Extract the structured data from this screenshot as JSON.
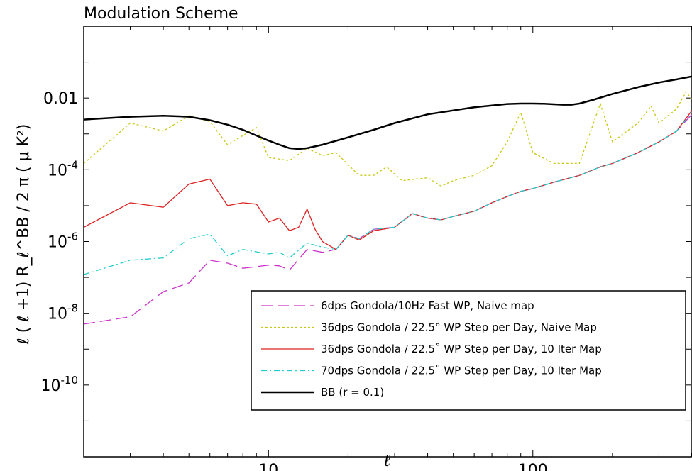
{
  "chart_data": {
    "type": "line",
    "title": "Modulation Scheme",
    "xlabel": "ℓ",
    "ylabel": "ℓ ( ℓ +1) R_ℓ^BB / 2 π ( μ K²)",
    "xscale": "log",
    "yscale": "log",
    "xlim": [
      2,
      400
    ],
    "ylim": [
      1e-12,
      1
    ],
    "x_ticks": [
      10,
      100
    ],
    "x_tick_labels": [
      "10",
      "100"
    ],
    "y_ticks": [
      0.01,
      0.0001,
      1e-06,
      1e-08,
      1e-10
    ],
    "y_tick_labels": [
      {
        "base": "0.01",
        "exp": ""
      },
      {
        "base": "10",
        "exp": "-4"
      },
      {
        "base": "10",
        "exp": "-6"
      },
      {
        "base": "10",
        "exp": "-8"
      },
      {
        "base": "10",
        "exp": "-10"
      }
    ],
    "grid": false,
    "legend_position": "bottom-right",
    "series": [
      {
        "name": "6dps Gondola/10Hz Fast WP, Naive map",
        "color": "#cc33cc",
        "dash": "long-dash",
        "points": [
          [
            2,
            5e-09
          ],
          [
            3,
            8e-09
          ],
          [
            4,
            4e-08
          ],
          [
            5,
            7e-08
          ],
          [
            6,
            3e-07
          ],
          [
            7,
            2.5e-07
          ],
          [
            8,
            1.8e-07
          ],
          [
            10,
            2.2e-07
          ],
          [
            11,
            2.1e-07
          ],
          [
            12,
            1.6e-07
          ],
          [
            14,
            6e-07
          ],
          [
            16,
            5e-07
          ],
          [
            18,
            6e-07
          ],
          [
            20,
            1.5e-06
          ],
          [
            22,
            1.2e-06
          ],
          [
            25,
            2.2e-06
          ],
          [
            30,
            2.5e-06
          ],
          [
            35,
            6e-06
          ],
          [
            40,
            4.5e-06
          ],
          [
            45,
            4e-06
          ],
          [
            50,
            5e-06
          ],
          [
            60,
            7e-06
          ],
          [
            70,
            1.2e-05
          ],
          [
            80,
            1.8e-05
          ],
          [
            90,
            2.5e-05
          ],
          [
            100,
            3e-05
          ],
          [
            120,
            4.5e-05
          ],
          [
            150,
            7e-05
          ],
          [
            180,
            0.00012
          ],
          [
            200,
            0.00015
          ],
          [
            250,
            0.0003
          ],
          [
            300,
            0.0006
          ],
          [
            350,
            0.0012
          ],
          [
            400,
            0.0035
          ]
        ]
      },
      {
        "name": "36dps Gondola / 22.5° WP Step per Day, Naive Map",
        "color": "#c8c814",
        "dash": "dotted",
        "points": [
          [
            2,
            0.00015
          ],
          [
            3,
            0.002
          ],
          [
            4,
            0.0012
          ],
          [
            5,
            0.0032
          ],
          [
            6,
            0.0022
          ],
          [
            7,
            0.0005
          ],
          [
            8,
            0.0009
          ],
          [
            9,
            0.0015
          ],
          [
            10,
            0.00022
          ],
          [
            12,
            0.00018
          ],
          [
            14,
            0.0004
          ],
          [
            16,
            0.00025
          ],
          [
            18,
            0.0003
          ],
          [
            22,
            7e-05
          ],
          [
            25,
            7e-05
          ],
          [
            28,
            0.00012
          ],
          [
            32,
            5e-05
          ],
          [
            40,
            6e-05
          ],
          [
            45,
            3.5e-05
          ],
          [
            50,
            5e-05
          ],
          [
            60,
            7e-05
          ],
          [
            70,
            0.00013
          ],
          [
            80,
            0.0006
          ],
          [
            90,
            0.004
          ],
          [
            100,
            0.0003
          ],
          [
            120,
            0.00015
          ],
          [
            150,
            0.00015
          ],
          [
            180,
            0.007
          ],
          [
            200,
            0.0006
          ],
          [
            250,
            0.002
          ],
          [
            280,
            0.006
          ],
          [
            300,
            0.002
          ],
          [
            350,
            0.005
          ],
          [
            380,
            0.015
          ],
          [
            400,
            0.009
          ]
        ]
      },
      {
        "name": "36dps Gondola /  22.5˚ WP Step per Day, 10 Iter Map",
        "color": "#dd2222",
        "dash": "solid",
        "points": [
          [
            2,
            2.5e-06
          ],
          [
            3,
            1.2e-05
          ],
          [
            4,
            9e-06
          ],
          [
            5,
            4e-05
          ],
          [
            6,
            5.5e-05
          ],
          [
            7,
            1e-05
          ],
          [
            8,
            1.2e-05
          ],
          [
            9,
            1.1e-05
          ],
          [
            10,
            3.5e-06
          ],
          [
            11,
            4.5e-06
          ],
          [
            12,
            2e-06
          ],
          [
            13,
            2.5e-06
          ],
          [
            14,
            8e-06
          ],
          [
            15,
            2.2e-06
          ],
          [
            16,
            1e-06
          ],
          [
            18,
            6e-07
          ],
          [
            20,
            1.5e-06
          ],
          [
            22,
            1.1e-06
          ],
          [
            25,
            2e-06
          ],
          [
            30,
            2.5e-06
          ],
          [
            35,
            6e-06
          ],
          [
            40,
            4.5e-06
          ],
          [
            45,
            4e-06
          ],
          [
            50,
            5e-06
          ],
          [
            60,
            7e-06
          ],
          [
            70,
            1.2e-05
          ],
          [
            80,
            1.8e-05
          ],
          [
            90,
            2.5e-05
          ],
          [
            100,
            3e-05
          ],
          [
            120,
            4.5e-05
          ],
          [
            150,
            7e-05
          ],
          [
            180,
            0.00012
          ],
          [
            200,
            0.00015
          ],
          [
            250,
            0.0003
          ],
          [
            300,
            0.0006
          ],
          [
            350,
            0.0012
          ],
          [
            400,
            0.0045
          ]
        ]
      },
      {
        "name": "70dps Gondola /  22.5˚ WP Step per Day, 10 Iter Map",
        "color": "#22cccc",
        "dash": "dash-dot",
        "points": [
          [
            2,
            1.2e-07
          ],
          [
            3,
            3e-07
          ],
          [
            4,
            3.5e-07
          ],
          [
            5,
            1.2e-06
          ],
          [
            6,
            1.6e-06
          ],
          [
            7,
            4e-07
          ],
          [
            8,
            6e-07
          ],
          [
            10,
            4.5e-07
          ],
          [
            11,
            5e-07
          ],
          [
            12,
            3.5e-07
          ],
          [
            14,
            9e-07
          ],
          [
            16,
            7e-07
          ],
          [
            18,
            6e-07
          ],
          [
            20,
            1.5e-06
          ],
          [
            22,
            1.2e-06
          ],
          [
            25,
            2.2e-06
          ],
          [
            30,
            2.5e-06
          ],
          [
            35,
            6e-06
          ],
          [
            40,
            4.5e-06
          ],
          [
            45,
            4e-06
          ],
          [
            50,
            5e-06
          ],
          [
            60,
            7e-06
          ],
          [
            70,
            1.2e-05
          ],
          [
            80,
            1.8e-05
          ],
          [
            90,
            2.5e-05
          ],
          [
            100,
            3e-05
          ],
          [
            120,
            4.5e-05
          ],
          [
            150,
            7e-05
          ],
          [
            180,
            0.00012
          ],
          [
            200,
            0.00015
          ],
          [
            250,
            0.0003
          ],
          [
            300,
            0.0006
          ],
          [
            350,
            0.0012
          ],
          [
            400,
            0.004
          ]
        ]
      },
      {
        "name": "BB (r = 0.1)",
        "color": "#000000",
        "dash": "solid",
        "points": [
          [
            2,
            0.0025
          ],
          [
            3,
            0.003
          ],
          [
            4,
            0.0032
          ],
          [
            5,
            0.003
          ],
          [
            6,
            0.0024
          ],
          [
            7,
            0.0018
          ],
          [
            8,
            0.0013
          ],
          [
            9,
            0.0009
          ],
          [
            10,
            0.00065
          ],
          [
            11,
            0.0005
          ],
          [
            12,
            0.0004
          ],
          [
            13,
            0.00038
          ],
          [
            14,
            0.0004
          ],
          [
            16,
            0.0005
          ],
          [
            20,
            0.0008
          ],
          [
            25,
            0.0013
          ],
          [
            30,
            0.002
          ],
          [
            40,
            0.0035
          ],
          [
            50,
            0.0045
          ],
          [
            60,
            0.0055
          ],
          [
            70,
            0.0062
          ],
          [
            80,
            0.0068
          ],
          [
            90,
            0.007
          ],
          [
            100,
            0.007
          ],
          [
            110,
            0.0069
          ],
          [
            120,
            0.0067
          ],
          [
            130,
            0.0065
          ],
          [
            140,
            0.0065
          ],
          [
            150,
            0.007
          ],
          [
            170,
            0.009
          ],
          [
            200,
            0.013
          ],
          [
            250,
            0.02
          ],
          [
            300,
            0.027
          ],
          [
            350,
            0.033
          ],
          [
            400,
            0.04
          ]
        ]
      }
    ]
  }
}
